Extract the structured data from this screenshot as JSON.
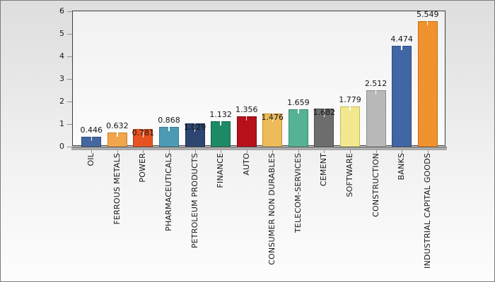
{
  "chart_data": {
    "type": "bar",
    "title": "",
    "xlabel": "",
    "ylabel": "",
    "ylim": [
      0,
      6
    ],
    "yticks": [
      0,
      1,
      2,
      3,
      4,
      5,
      6
    ],
    "grid": false,
    "legend": false,
    "categories": [
      "OIL",
      "FERROUS METALS",
      "POWER",
      "PHARMACEUTICALS",
      "PETROLEUM PRODUCTS",
      "FINANCE",
      "AUTO",
      "CONSUMER NON DURABLES",
      "TELECOM-SERVICES",
      "CEMENT",
      "SOFTWARE",
      "CONSTRUCTION",
      "BANKS",
      "INDUSTRIAL CAPITAL GOODS"
    ],
    "values": [
      0.446,
      0.632,
      0.781,
      0.868,
      1.029,
      1.132,
      1.356,
      1.476,
      1.659,
      1.682,
      1.779,
      2.512,
      4.474,
      5.549
    ],
    "value_labels": [
      "0.446",
      "0.632",
      "0.781",
      "0.868",
      "1.029",
      "1.132",
      "1.356",
      "1.476",
      "1.659",
      "1.682",
      "1.779",
      "2.512",
      "4.474",
      "5.549"
    ],
    "value_label_low": [
      false,
      false,
      true,
      false,
      true,
      false,
      false,
      true,
      false,
      true,
      false,
      false,
      false,
      false
    ],
    "bar_fill_colors": [
      "#44679f",
      "#f2a64b",
      "#e65321",
      "#4d9ab4",
      "#2d4570",
      "#1c8a66",
      "#b6101b",
      "#eebb5a",
      "#55b294",
      "#6d6d6d",
      "#f2e88d",
      "#b9b9b9",
      "#4166a4",
      "#f0922d"
    ],
    "bar_border_colors": [
      "#2f4c7e",
      "#c77f23",
      "#b33a12",
      "#357a92",
      "#1c2d4e",
      "#116548",
      "#820a12",
      "#c28f2c",
      "#3a8c71",
      "#4c4c4c",
      "#c6b95e",
      "#8b8b8b",
      "#2c4a82",
      "#bf6f15"
    ],
    "layout_hints": {
      "x_labels_rotated_bottom_to_top": true,
      "leader_tick_color": "#ffffff",
      "axis_text_color": "#16181f",
      "plot_border_color": "#3c3c3c"
    }
  }
}
